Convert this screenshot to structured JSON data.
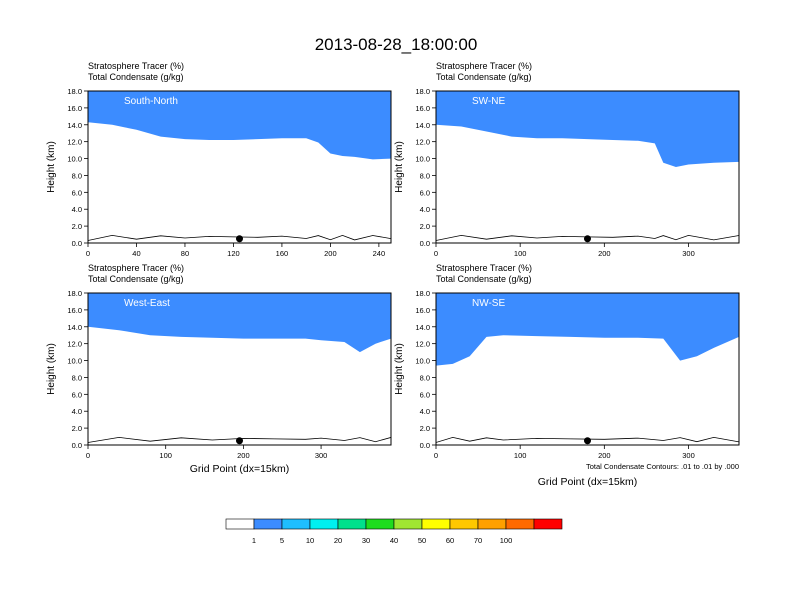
{
  "figure": {
    "title": "2013-08-28_18:00:00",
    "panel_header_1": "Stratosphere Tracer   (%)",
    "panel_header_2": "Total Condensate   (g/kg)",
    "contour_note": "Total Condensate Contours: .01 to .01 by .000",
    "x_axis_label": "Grid Point (dx=15km)",
    "y_axis_label": "Height (km)"
  },
  "chart_data": {
    "type": "heatmap",
    "title": "2013-08-28_18:00:00",
    "variables": [
      "Stratosphere Tracer (%)",
      "Total Condensate (g/kg)"
    ],
    "ylabel": "Height (km)",
    "xlabel": "Grid Point (dx=15km)",
    "ylim": [
      0,
      18
    ],
    "yticks": [
      "0.0",
      "2.0",
      "4.0",
      "6.0",
      "8.0",
      "10.0",
      "12.0",
      "14.0",
      "16.0",
      "18.0"
    ],
    "colorbar": {
      "levels": [
        "1",
        "5",
        "10",
        "20",
        "30",
        "40",
        "50",
        "60",
        "70",
        "100"
      ],
      "colors": [
        "#ffffff",
        "#3c8cff",
        "#1ebeff",
        "#00f0f0",
        "#00e08c",
        "#1edc1e",
        "#a0e632",
        "#ffff00",
        "#ffc800",
        "#ffa000",
        "#ff6a00",
        "#ff0000"
      ]
    },
    "panels": [
      {
        "id": "south-north",
        "label": "South-North",
        "xlim": [
          0,
          250
        ],
        "xticks": [
          "0",
          "40",
          "80",
          "120",
          "160",
          "200",
          "240"
        ],
        "xtick_values": [
          0,
          40,
          80,
          120,
          160,
          200,
          240
        ],
        "marker_x": 125,
        "top_x": [
          0,
          20,
          40,
          60,
          80,
          100,
          120,
          140,
          160,
          180,
          190,
          200,
          210,
          220,
          235,
          250
        ],
        "tracer_bottom_km": [
          14.3,
          14.0,
          13.4,
          12.6,
          12.3,
          12.2,
          12.2,
          12.3,
          12.4,
          12.4,
          11.9,
          10.6,
          10.3,
          10.2,
          9.9,
          10.0
        ],
        "has_contour_note": false
      },
      {
        "id": "sw-ne",
        "label": "SW-NE",
        "xlim": [
          0,
          360
        ],
        "xticks": [
          "0",
          "100",
          "200",
          "300"
        ],
        "xtick_values": [
          0,
          100,
          200,
          300
        ],
        "marker_x": 180,
        "top_x": [
          0,
          30,
          60,
          90,
          120,
          150,
          180,
          210,
          240,
          260,
          270,
          285,
          300,
          330,
          360
        ],
        "tracer_bottom_km": [
          14.0,
          13.8,
          13.2,
          12.6,
          12.4,
          12.4,
          12.3,
          12.2,
          12.1,
          11.8,
          9.5,
          9.0,
          9.3,
          9.5,
          9.6
        ],
        "has_contour_note": false
      },
      {
        "id": "west-east",
        "label": "West-East",
        "xlim": [
          0,
          390
        ],
        "xticks": [
          "0",
          "100",
          "200",
          "300"
        ],
        "xtick_values": [
          0,
          100,
          200,
          300
        ],
        "marker_x": 195,
        "top_x": [
          0,
          40,
          80,
          120,
          160,
          200,
          240,
          280,
          300,
          330,
          350,
          370,
          390
        ],
        "tracer_bottom_km": [
          14.0,
          13.6,
          13.0,
          12.8,
          12.7,
          12.6,
          12.6,
          12.6,
          12.4,
          12.2,
          11.0,
          12.0,
          12.6
        ],
        "has_contour_note": false
      },
      {
        "id": "nw-se",
        "label": "NW-SE",
        "xlim": [
          0,
          360
        ],
        "xticks": [
          "0",
          "100",
          "200",
          "300"
        ],
        "xtick_values": [
          0,
          100,
          200,
          300
        ],
        "marker_x": 180,
        "top_x": [
          0,
          20,
          40,
          60,
          80,
          120,
          160,
          200,
          240,
          270,
          290,
          310,
          330,
          360
        ],
        "tracer_bottom_km": [
          9.4,
          9.6,
          10.5,
          12.8,
          13.0,
          12.9,
          12.8,
          12.7,
          12.7,
          12.6,
          10.0,
          10.5,
          11.5,
          12.8
        ],
        "has_contour_note": true
      }
    ]
  }
}
